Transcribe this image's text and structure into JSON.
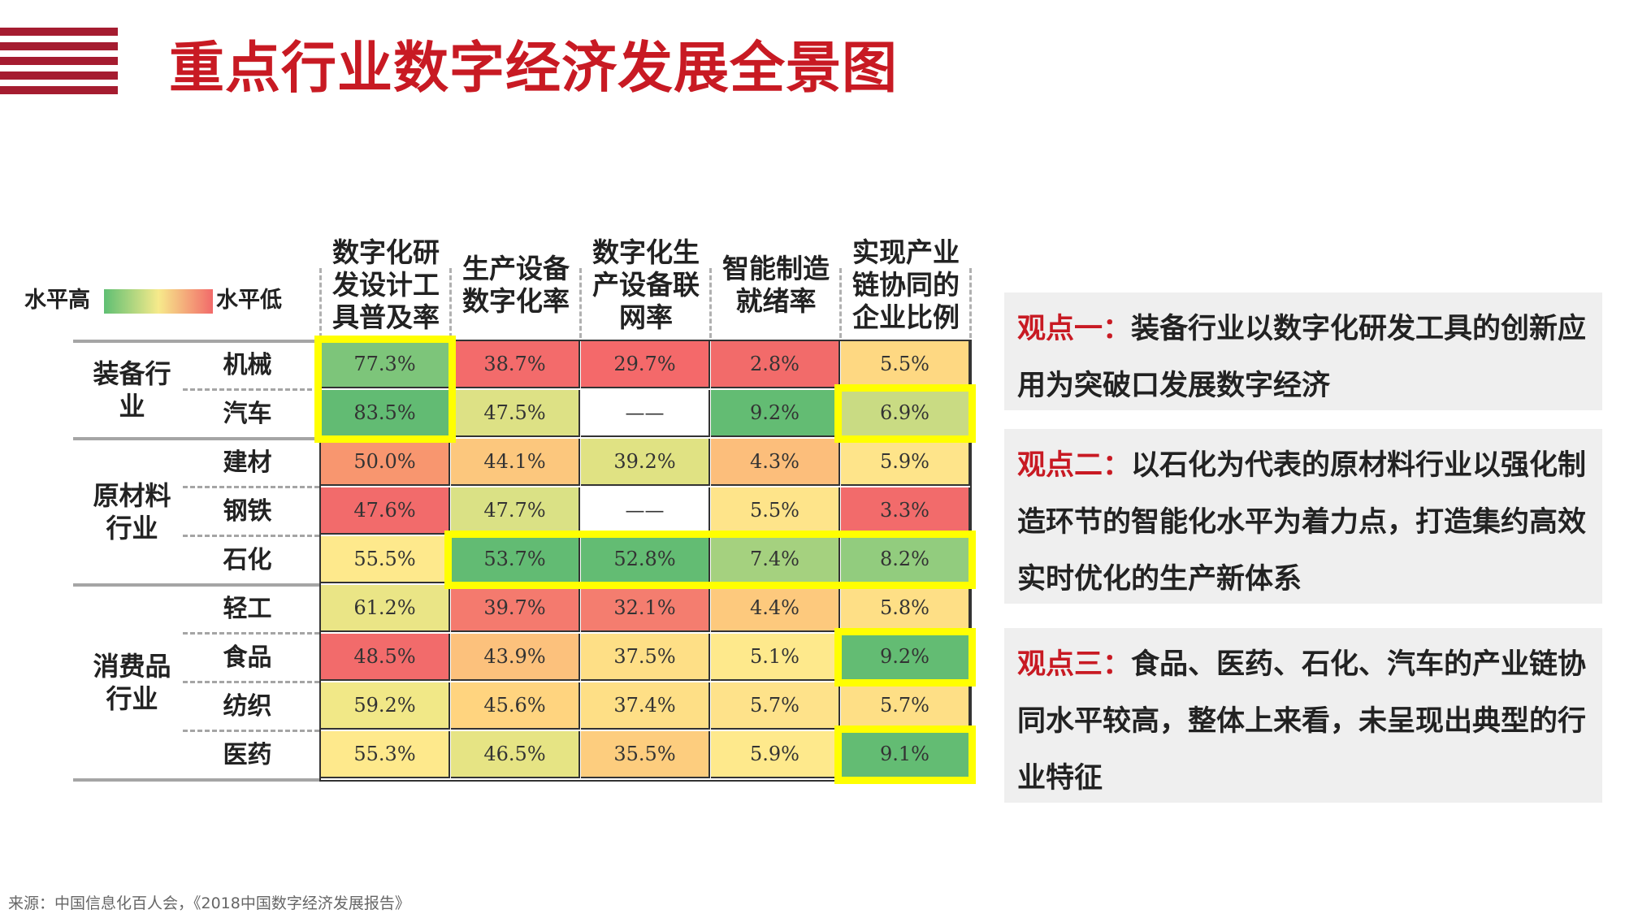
{
  "title": "重点行业数字经济发展全景图",
  "legend": {
    "high_label": "水平高",
    "low_label": "水平低"
  },
  "colors": {
    "brand_red": "#c81a23",
    "stripe_red": "#a51c30",
    "highlight": "#ffff00"
  },
  "chart_data": {
    "type": "heatmap",
    "title": "",
    "columns": [
      "数字化研\n发设计工\n具普及率",
      "生产设备\n数字化率",
      "数字化生\n产设备联\n网率",
      "智能制造\n就绪率",
      "实现产业\n链协同的\n企业比例"
    ],
    "groups": [
      {
        "label": "装备行\n业",
        "rows": [
          "机械",
          "汽车"
        ]
      },
      {
        "label": "原材料\n行业",
        "rows": [
          "建材",
          "钢铁",
          "石化"
        ]
      },
      {
        "label": "消费品\n行业",
        "rows": [
          "轻工",
          "食品",
          "纺织",
          "医药"
        ]
      }
    ],
    "rows": [
      "机械",
      "汽车",
      "建材",
      "钢铁",
      "石化",
      "轻工",
      "食品",
      "纺织",
      "医药"
    ],
    "values": [
      [
        "77.3%",
        "38.7%",
        "29.7%",
        "2.8%",
        "5.5%"
      ],
      [
        "83.5%",
        "47.5%",
        "——",
        "9.2%",
        "6.9%"
      ],
      [
        "50.0%",
        "44.1%",
        "39.2%",
        "4.3%",
        "5.9%"
      ],
      [
        "47.6%",
        "47.7%",
        "——",
        "5.5%",
        "3.3%"
      ],
      [
        "55.5%",
        "53.7%",
        "52.8%",
        "7.4%",
        "8.2%"
      ],
      [
        "61.2%",
        "39.7%",
        "32.1%",
        "4.4%",
        "5.8%"
      ],
      [
        "48.5%",
        "43.9%",
        "37.5%",
        "5.1%",
        "9.2%"
      ],
      [
        "59.2%",
        "45.6%",
        "37.4%",
        "5.7%",
        "5.7%"
      ],
      [
        "55.3%",
        "46.5%",
        "35.5%",
        "5.9%",
        "9.1%"
      ]
    ],
    "cell_colors": [
      [
        "#7dc57a",
        "#f36b6b",
        "#f4696a",
        "#f26b6a",
        "#fed882"
      ],
      [
        "#62bb73",
        "#dde185",
        "#ffffff",
        "#63bc73",
        "#c9db83"
      ],
      [
        "#f8966f",
        "#fcc77d",
        "#e0e283",
        "#fcbe7b",
        "#fee48a"
      ],
      [
        "#f26b6b",
        "#dae185",
        "#ffffff",
        "#fee48a",
        "#f26b6b"
      ],
      [
        "#fee98c",
        "#62bb73",
        "#63bc73",
        "#a5d17f",
        "#92cc7e"
      ],
      [
        "#eae586",
        "#f47a6e",
        "#f47d6f",
        "#fdc97d",
        "#fedf86"
      ],
      [
        "#f26b6b",
        "#fcc17c",
        "#fedf86",
        "#fee98c",
        "#63bc73"
      ],
      [
        "#f1e887",
        "#ffd47f",
        "#fedf86",
        "#fee28a",
        "#fedf86"
      ],
      [
        "#fee98c",
        "#e6e484",
        "#fdcd7e",
        "#fee98c",
        "#63bc73"
      ]
    ],
    "highlighted": [
      {
        "rows": [
          "机械",
          "汽车"
        ],
        "columns": [
          "数字化研\n发设计工\n具普及率"
        ]
      },
      {
        "rows": [
          "汽车"
        ],
        "columns": [
          "实现产业\n链协同的\n企业比例"
        ]
      },
      {
        "rows": [
          "石化"
        ],
        "columns": [
          "生产设备\n数字化率",
          "数字化生\n产设备联\n网率",
          "智能制造\n就绪率",
          "实现产业\n链协同的\n企业比例"
        ]
      },
      {
        "rows": [
          "食品"
        ],
        "columns": [
          "实现产业\n链协同的\n企业比例"
        ]
      },
      {
        "rows": [
          "医药"
        ],
        "columns": [
          "实现产业\n链协同的\n企业比例"
        ]
      }
    ]
  },
  "views": [
    {
      "head": "观点一：",
      "body": "装备行业以数字化研发工具的创新应用为突破口发展数字经济"
    },
    {
      "head": "观点二：",
      "body": "以石化为代表的原材料行业以强化制造环节的智能化水平为着力点，打造集约高效实时优化的生产新体系"
    },
    {
      "head": "观点三：",
      "body": "食品、医药、石化、汽车的产业链协同水平较高，整体上来看，未呈现出典型的行业特征"
    }
  ],
  "source": "来源：中国信息化百人会，《2018中国数字经济发展报告》"
}
